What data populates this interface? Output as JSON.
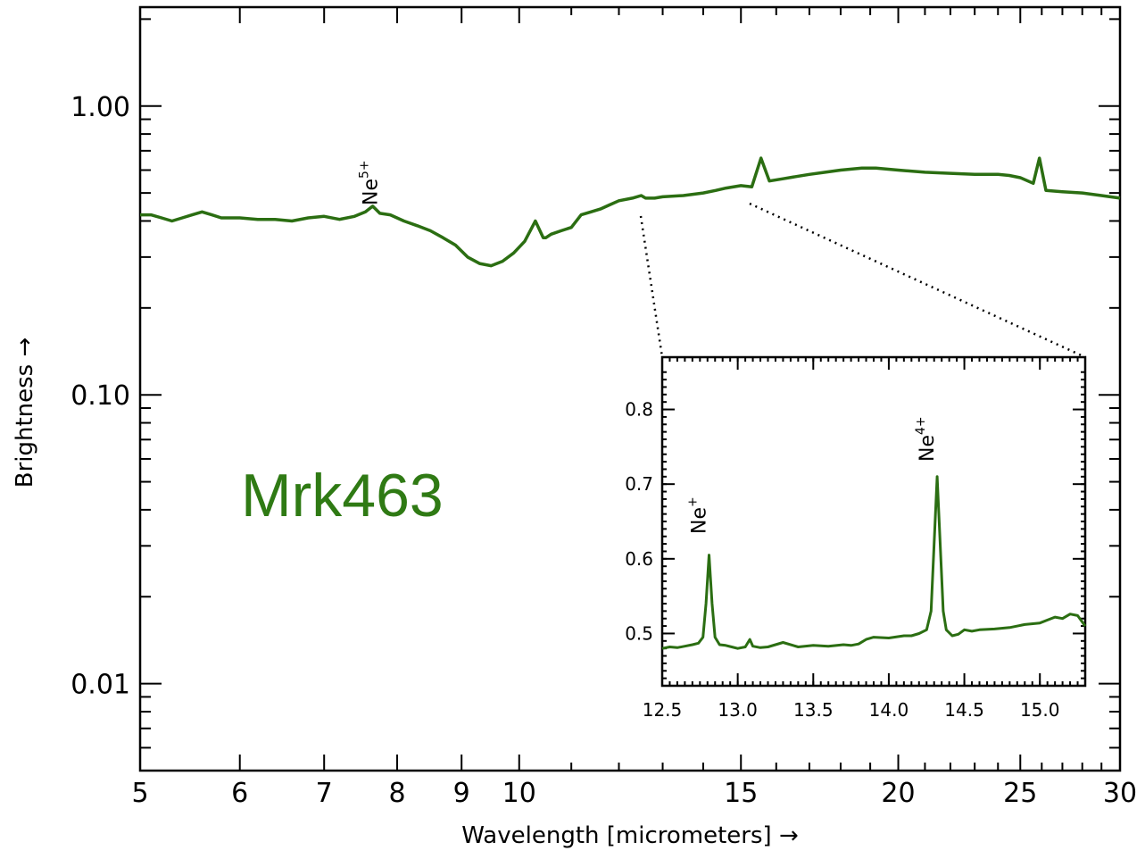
{
  "chart_data": [
    {
      "type": "line",
      "xlabel": "Wavelength [micrometers] →",
      "ylabel": "Brightness →",
      "x_scale": "log",
      "y_scale": "log",
      "xlim": [
        5,
        30
      ],
      "ylim": [
        0.005,
        2.2
      ],
      "x_ticks": [
        5,
        6,
        7,
        8,
        9,
        10,
        15,
        20,
        25,
        30
      ],
      "x_tick_labels": [
        "5",
        "6",
        "7",
        "8",
        "9",
        "10",
        "15",
        "20",
        "25",
        "30"
      ],
      "y_ticks": [
        0.01,
        0.1,
        1.0
      ],
      "y_tick_labels": [
        "0.01",
        "0.10",
        "1.00"
      ],
      "annotation": "Mrk463",
      "line_labels": [
        {
          "ion": "Ne",
          "charge": "5+",
          "x": 7.65
        }
      ],
      "series": [
        {
          "x": [
            5.0,
            5.1,
            5.2,
            5.3,
            5.4,
            5.5,
            5.6,
            5.7,
            5.8,
            6.0,
            6.2,
            6.4,
            6.6,
            6.8,
            7.0,
            7.2,
            7.4,
            7.55,
            7.65,
            7.75,
            7.9,
            8.1,
            8.3,
            8.5,
            8.7,
            8.9,
            9.1,
            9.3,
            9.5,
            9.7,
            9.9,
            10.1,
            10.3,
            10.45,
            10.5,
            10.6,
            10.8,
            11.0,
            11.2,
            11.4,
            11.6,
            11.8,
            12.0,
            12.3,
            12.5,
            12.6,
            12.81,
            13.0,
            13.5,
            14.0,
            14.32,
            14.6,
            15.0,
            15.3,
            15.56,
            15.8,
            16.2,
            16.6,
            17.0,
            17.5,
            18.0,
            18.71,
            19.2,
            20.0,
            21.0,
            22.0,
            23.0,
            24.0,
            24.5,
            25.0,
            25.6,
            25.89,
            26.2,
            27.0,
            28.0,
            29.0,
            30.0
          ],
          "values": [
            0.42,
            0.42,
            0.41,
            0.4,
            0.41,
            0.42,
            0.43,
            0.42,
            0.41,
            0.41,
            0.405,
            0.405,
            0.4,
            0.41,
            0.415,
            0.405,
            0.415,
            0.43,
            0.45,
            0.425,
            0.42,
            0.4,
            0.385,
            0.37,
            0.35,
            0.33,
            0.3,
            0.285,
            0.28,
            0.29,
            0.31,
            0.34,
            0.4,
            0.35,
            0.35,
            0.36,
            0.37,
            0.38,
            0.42,
            0.43,
            0.44,
            0.455,
            0.47,
            0.48,
            0.49,
            0.48,
            0.48,
            0.485,
            0.49,
            0.5,
            0.51,
            0.52,
            0.53,
            0.525,
            0.66,
            0.55,
            0.56,
            0.57,
            0.58,
            0.59,
            0.6,
            0.61,
            0.61,
            0.6,
            0.59,
            0.585,
            0.58,
            0.58,
            0.575,
            0.565,
            0.54,
            0.66,
            0.51,
            0.505,
            0.5,
            0.49,
            0.48
          ]
        }
      ]
    },
    {
      "type": "line",
      "xlim": [
        12.5,
        15.3
      ],
      "ylim": [
        0.43,
        0.87
      ],
      "x_ticks": [
        12.5,
        13.0,
        13.5,
        14.0,
        14.5,
        15.0
      ],
      "x_tick_labels": [
        "12.5",
        "13.0",
        "13.5",
        "14.0",
        "14.5",
        "15.0"
      ],
      "y_ticks": [
        0.5,
        0.6,
        0.7,
        0.8
      ],
      "y_tick_labels": [
        "0.5",
        "0.6",
        "0.7",
        "0.8"
      ],
      "line_labels": [
        {
          "ion": "Ne",
          "charge": "+",
          "x": 12.81
        },
        {
          "ion": "Ne",
          "charge": "4+",
          "x": 14.32
        }
      ],
      "series": [
        {
          "x": [
            12.5,
            12.55,
            12.6,
            12.65,
            12.7,
            12.74,
            12.77,
            12.79,
            12.81,
            12.83,
            12.85,
            12.88,
            12.92,
            12.96,
            13.0,
            13.05,
            13.08,
            13.1,
            13.15,
            13.2,
            13.3,
            13.4,
            13.5,
            13.6,
            13.7,
            13.75,
            13.8,
            13.85,
            13.9,
            14.0,
            14.1,
            14.15,
            14.2,
            14.25,
            14.28,
            14.3,
            14.32,
            14.34,
            14.36,
            14.38,
            14.42,
            14.46,
            14.5,
            14.55,
            14.6,
            14.7,
            14.8,
            14.9,
            15.0,
            15.05,
            15.1,
            15.15,
            15.2,
            15.25,
            15.3
          ],
          "values": [
            0.48,
            0.482,
            0.481,
            0.483,
            0.485,
            0.487,
            0.495,
            0.54,
            0.605,
            0.54,
            0.495,
            0.485,
            0.484,
            0.482,
            0.48,
            0.482,
            0.492,
            0.483,
            0.481,
            0.482,
            0.488,
            0.482,
            0.484,
            0.483,
            0.485,
            0.484,
            0.486,
            0.492,
            0.495,
            0.494,
            0.497,
            0.497,
            0.5,
            0.505,
            0.53,
            0.62,
            0.71,
            0.62,
            0.53,
            0.505,
            0.497,
            0.499,
            0.505,
            0.503,
            0.505,
            0.506,
            0.508,
            0.512,
            0.514,
            0.518,
            0.522,
            0.52,
            0.526,
            0.524,
            0.51
          ]
        }
      ]
    }
  ],
  "colors": {
    "line": "#2b6e12",
    "label_text": "#2f7a14",
    "axes": "#000000"
  }
}
